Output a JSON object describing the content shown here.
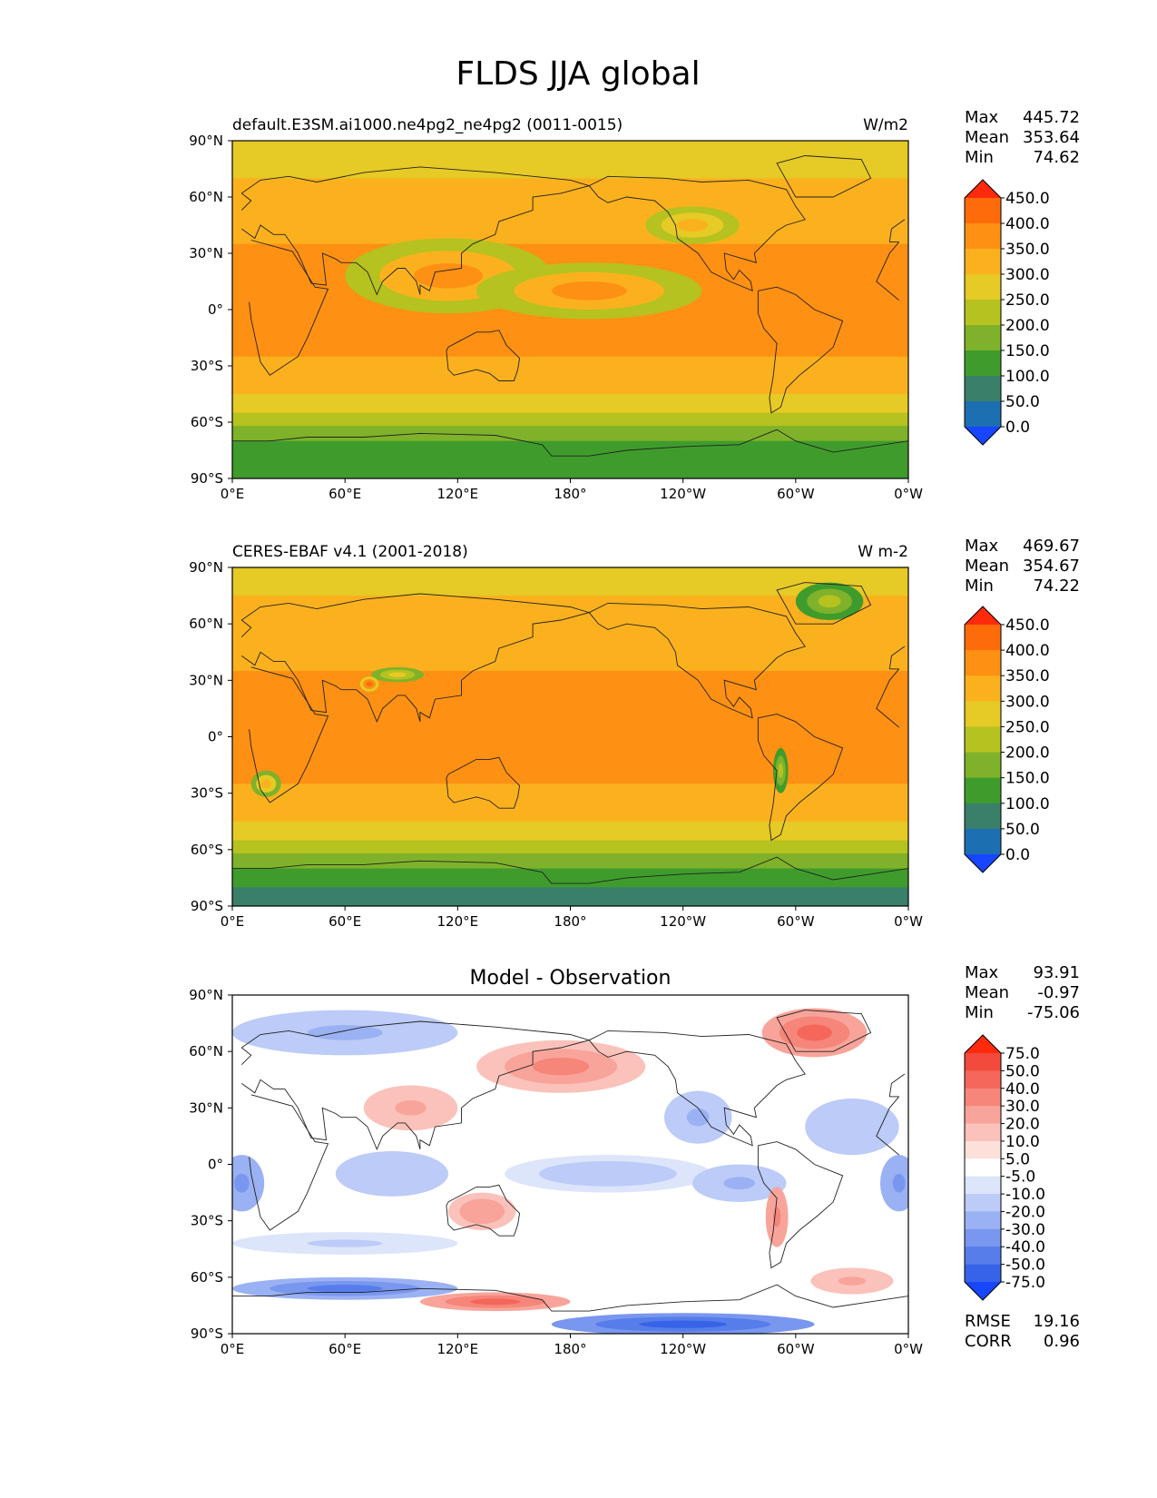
{
  "title": "FLDS JJA global",
  "chart_data": [
    {
      "type": "heatmap",
      "subtitle": "default.E3SM.ai1000.ne4pg2_ne4pg2 (0011-0015)",
      "units": "W/m2",
      "stats": [
        [
          "Max",
          "445.72"
        ],
        [
          "Mean",
          "353.64"
        ],
        [
          "Min",
          "74.62"
        ]
      ],
      "x_ticks": [
        "0°E",
        "60°E",
        "120°E",
        "180°",
        "120°W",
        "60°W",
        "0°W"
      ],
      "y_ticks": [
        "90°N",
        "60°N",
        "30°N",
        "0°",
        "30°S",
        "60°S",
        "90°S"
      ],
      "xlim": [
        0,
        360
      ],
      "ylim": [
        -90,
        90
      ],
      "colorbar": {
        "levels": [
          "450.0",
          "400.0",
          "350.0",
          "300.0",
          "250.0",
          "200.0",
          "150.0",
          "100.0",
          "50.0",
          "0.0"
        ],
        "colors": [
          "#ff2a0c",
          "#fe6b0a",
          "#fe9013",
          "#fbb11e",
          "#e6ca25",
          "#b5c21f",
          "#7fb22a",
          "#3f9c2c",
          "#3a7f6a",
          "#1c6fb0",
          "#1846ff"
        ]
      },
      "field": {
        "lat_bands": [
          {
            "lat": [
              70,
              90
            ],
            "value": 270
          },
          {
            "lat": [
              50,
              70
            ],
            "value": 320
          },
          {
            "lat": [
              35,
              50
            ],
            "value": 345
          },
          {
            "lat": [
              15,
              35
            ],
            "value": 365
          },
          {
            "lat": [
              -10,
              15
            ],
            "value": 395
          },
          {
            "lat": [
              -25,
              -10
            ],
            "value": 360
          },
          {
            "lat": [
              -45,
              -25
            ],
            "value": 330
          },
          {
            "lat": [
              -55,
              -45
            ],
            "value": 290
          },
          {
            "lat": [
              -62,
              -55
            ],
            "value": 245
          },
          {
            "lat": [
              -70,
              -62
            ],
            "value": 195
          },
          {
            "lat": [
              -80,
              -70
            ],
            "value": 150
          },
          {
            "lat": [
              -90,
              -80
            ],
            "value": 110
          }
        ],
        "patches": [
          {
            "lon": 115,
            "lat": 18,
            "rx": 55,
            "ry": 20,
            "value": 410
          },
          {
            "lon": 190,
            "lat": 10,
            "rx": 60,
            "ry": 15,
            "value": 410
          },
          {
            "lon": 245,
            "lat": 45,
            "rx": 25,
            "ry": 10,
            "value": 335
          }
        ]
      }
    },
    {
      "type": "heatmap",
      "subtitle": "CERES-EBAF v4.1 (2001-2018)",
      "units": "W m-2",
      "stats": [
        [
          "Max",
          "469.67"
        ],
        [
          "Mean",
          "354.67"
        ],
        [
          "Min",
          "74.22"
        ]
      ],
      "x_ticks": [
        "0°E",
        "60°E",
        "120°E",
        "180°",
        "120°W",
        "60°W",
        "0°W"
      ],
      "y_ticks": [
        "90°N",
        "60°N",
        "30°N",
        "0°",
        "30°S",
        "60°S",
        "90°S"
      ],
      "xlim": [
        0,
        360
      ],
      "ylim": [
        -90,
        90
      ],
      "colorbar": {
        "levels": [
          "450.0",
          "400.0",
          "350.0",
          "300.0",
          "250.0",
          "200.0",
          "150.0",
          "100.0",
          "50.0",
          "0.0"
        ],
        "colors": [
          "#ff2a0c",
          "#fe6b0a",
          "#fe9013",
          "#fbb11e",
          "#e6ca25",
          "#b5c21f",
          "#7fb22a",
          "#3f9c2c",
          "#3a7f6a",
          "#1c6fb0",
          "#1846ff"
        ]
      },
      "field": {
        "lat_bands": [
          {
            "lat": [
              75,
              90
            ],
            "value": 270
          },
          {
            "lat": [
              55,
              75
            ],
            "value": 320
          },
          {
            "lat": [
              35,
              55
            ],
            "value": 345
          },
          {
            "lat": [
              15,
              35
            ],
            "value": 375
          },
          {
            "lat": [
              -10,
              15
            ],
            "value": 400
          },
          {
            "lat": [
              -25,
              -10
            ],
            "value": 370
          },
          {
            "lat": [
              -45,
              -25
            ],
            "value": 330
          },
          {
            "lat": [
              -55,
              -45
            ],
            "value": 285
          },
          {
            "lat": [
              -62,
              -55
            ],
            "value": 240
          },
          {
            "lat": [
              -70,
              -62
            ],
            "value": 185
          },
          {
            "lat": [
              -80,
              -70
            ],
            "value": 130
          },
          {
            "lat": [
              -90,
              -80
            ],
            "value": 95
          }
        ],
        "patches": [
          {
            "lon": 318,
            "lat": 72,
            "rx": 18,
            "ry": 10,
            "value": 210
          },
          {
            "lon": 88,
            "lat": 33,
            "rx": 14,
            "ry": 4,
            "value": 310
          },
          {
            "lon": 73,
            "lat": 28,
            "rx": 5,
            "ry": 4,
            "value": 460
          },
          {
            "lon": 292,
            "lat": -18,
            "rx": 4,
            "ry": 12,
            "value": 240
          },
          {
            "lon": 18,
            "lat": -25,
            "rx": 8,
            "ry": 7,
            "value": 330
          }
        ]
      }
    },
    {
      "type": "heatmap",
      "subtitle": "Model - Observation",
      "units": "",
      "stats": [
        [
          "Max",
          "93.91"
        ],
        [
          "Mean",
          "-0.97"
        ],
        [
          "Min",
          "-75.06"
        ]
      ],
      "footer_stats": [
        [
          "RMSE",
          "19.16"
        ],
        [
          "CORR",
          "0.96"
        ]
      ],
      "x_ticks": [
        "0°E",
        "60°E",
        "120°E",
        "180°",
        "120°W",
        "60°W",
        "0°W"
      ],
      "y_ticks": [
        "90°N",
        "60°N",
        "30°N",
        "0°",
        "30°S",
        "60°S",
        "90°S"
      ],
      "xlim": [
        0,
        360
      ],
      "ylim": [
        -90,
        90
      ],
      "colorbar": {
        "levels": [
          "75.0",
          "50.0",
          "40.0",
          "30.0",
          "20.0",
          "10.0",
          "5.0",
          "-5.0",
          "-10.0",
          "-20.0",
          "-30.0",
          "-40.0",
          "-50.0",
          "-75.0"
        ],
        "colors": [
          "#ff2a0c",
          "#f24a3c",
          "#f4675a",
          "#f6857a",
          "#f8a49a",
          "#fac2ba",
          "#fde0da",
          "#ffffff",
          "#dde5fb",
          "#bccbf7",
          "#9ab1f3",
          "#7997ef",
          "#577deb",
          "#3663e7",
          "#1846ff"
        ]
      },
      "field": {
        "patches": [
          {
            "lon": 60,
            "lat": 70,
            "rx": 60,
            "ry": 12,
            "value": -25
          },
          {
            "lon": 175,
            "lat": 52,
            "rx": 45,
            "ry": 14,
            "value": 32
          },
          {
            "lon": 95,
            "lat": 30,
            "rx": 25,
            "ry": 12,
            "value": 25
          },
          {
            "lon": 310,
            "lat": 70,
            "rx": 28,
            "ry": 13,
            "value": 50
          },
          {
            "lon": 248,
            "lat": 25,
            "rx": 18,
            "ry": 14,
            "value": -22
          },
          {
            "lon": 330,
            "lat": 20,
            "rx": 25,
            "ry": 15,
            "value": -18
          },
          {
            "lon": 5,
            "lat": -10,
            "rx": 12,
            "ry": 15,
            "value": -35
          },
          {
            "lon": 355,
            "lat": -10,
            "rx": 10,
            "ry": 15,
            "value": -35
          },
          {
            "lon": 85,
            "lat": -5,
            "rx": 30,
            "ry": 12,
            "value": -18
          },
          {
            "lon": 200,
            "lat": -5,
            "rx": 55,
            "ry": 10,
            "value": -15
          },
          {
            "lon": 270,
            "lat": -10,
            "rx": 25,
            "ry": 10,
            "value": -25
          },
          {
            "lon": 133,
            "lat": -25,
            "rx": 18,
            "ry": 10,
            "value": 28
          },
          {
            "lon": 290,
            "lat": -28,
            "rx": 6,
            "ry": 16,
            "value": 38
          },
          {
            "lon": 60,
            "lat": -42,
            "rx": 60,
            "ry": 6,
            "value": -12
          },
          {
            "lon": 60,
            "lat": -66,
            "rx": 60,
            "ry": 6,
            "value": -45
          },
          {
            "lon": 140,
            "lat": -73,
            "rx": 40,
            "ry": 5,
            "value": 42
          },
          {
            "lon": 240,
            "lat": -85,
            "rx": 70,
            "ry": 6,
            "value": -55
          },
          {
            "lon": 330,
            "lat": -62,
            "rx": 22,
            "ry": 7,
            "value": 25
          }
        ]
      }
    }
  ]
}
